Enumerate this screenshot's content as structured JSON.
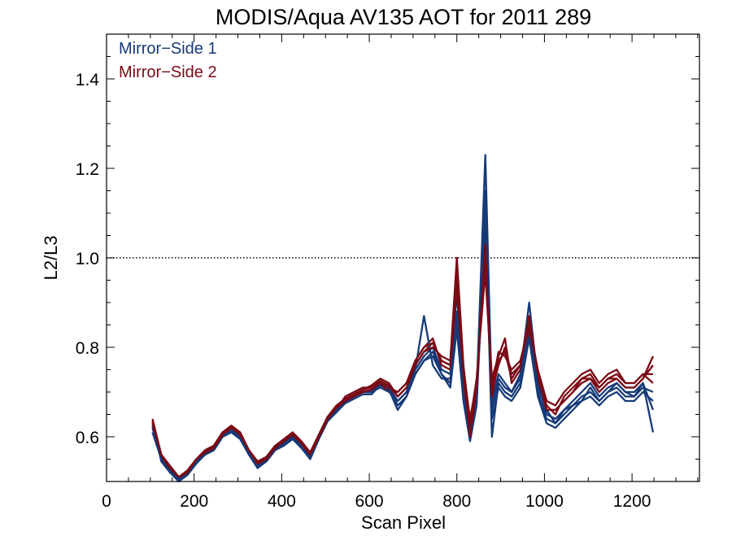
{
  "chart_data": {
    "type": "line",
    "title": "MODIS/Aqua AV135 AOT for 2011 289",
    "xlabel": "Scan Pixel",
    "ylabel": "L2/L3",
    "xlim": [
      0,
      1354
    ],
    "ylim": [
      0.5,
      1.5
    ],
    "xticks": [
      0,
      200,
      400,
      600,
      800,
      1000,
      1200
    ],
    "xtick_labels": [
      "0",
      "200",
      "400",
      "600",
      "800",
      "1000",
      "1200"
    ],
    "yticks": [
      0.6,
      0.8,
      1.0,
      1.2,
      1.4
    ],
    "ytick_labels": [
      "0.6",
      "0.8",
      "1.0",
      "1.2",
      "1.4"
    ],
    "x_minor_step": 50,
    "y_minor_step": 0.05,
    "reference_line": {
      "y": 1.0,
      "style": "dotted"
    },
    "legend": {
      "placement": "top-left"
    },
    "colors": {
      "mirror_side_1": "#163a78",
      "mirror_side_2": "#7a0a14"
    },
    "x": [
      105,
      125,
      145,
      165,
      185,
      205,
      225,
      245,
      265,
      285,
      305,
      325,
      345,
      365,
      385,
      405,
      425,
      445,
      465,
      485,
      505,
      525,
      545,
      565,
      585,
      605,
      625,
      645,
      665,
      685,
      705,
      725,
      745,
      765,
      785,
      800,
      815,
      830,
      845,
      865,
      880,
      895,
      910,
      925,
      945,
      965,
      985,
      1005,
      1025,
      1045,
      1065,
      1085,
      1105,
      1125,
      1145,
      1165,
      1185,
      1205,
      1225,
      1248
    ],
    "series": [
      {
        "name": "Mirror−Side 1",
        "group": 1,
        "values": [
          0.62,
          0.55,
          0.525,
          0.51,
          0.52,
          0.545,
          0.565,
          0.575,
          0.605,
          0.615,
          0.6,
          0.565,
          0.535,
          0.55,
          0.575,
          0.585,
          0.6,
          0.58,
          0.56,
          0.6,
          0.64,
          0.66,
          0.68,
          0.69,
          0.7,
          0.7,
          0.72,
          0.71,
          0.68,
          0.7,
          0.75,
          0.78,
          0.8,
          0.75,
          0.74,
          0.92,
          0.72,
          0.63,
          0.7,
          1.23,
          0.68,
          0.74,
          0.72,
          0.7,
          0.74,
          0.9,
          0.72,
          0.65,
          0.64,
          0.66,
          0.68,
          0.7,
          0.72,
          0.69,
          0.71,
          0.72,
          0.7,
          0.7,
          0.72,
          0.61
        ]
      },
      {
        "name": "Mirror−Side 2",
        "group": 2,
        "values": [
          0.64,
          0.56,
          0.53,
          0.505,
          0.525,
          0.55,
          0.57,
          0.58,
          0.61,
          0.62,
          0.61,
          0.57,
          0.54,
          0.555,
          0.58,
          0.59,
          0.605,
          0.585,
          0.565,
          0.605,
          0.645,
          0.665,
          0.685,
          0.695,
          0.705,
          0.71,
          0.725,
          0.715,
          0.69,
          0.71,
          0.76,
          0.79,
          0.81,
          0.77,
          0.76,
          0.98,
          0.74,
          0.62,
          0.71,
          1.05,
          0.7,
          0.76,
          0.8,
          0.74,
          0.76,
          0.86,
          0.74,
          0.66,
          0.66,
          0.68,
          0.7,
          0.72,
          0.73,
          0.7,
          0.72,
          0.73,
          0.71,
          0.71,
          0.73,
          0.78
        ]
      },
      {
        "name": "",
        "group": 1,
        "values": [
          0.63,
          0.545,
          0.52,
          0.5,
          0.515,
          0.54,
          0.56,
          0.57,
          0.6,
          0.61,
          0.595,
          0.56,
          0.53,
          0.545,
          0.57,
          0.58,
          0.595,
          0.575,
          0.55,
          0.595,
          0.635,
          0.655,
          0.675,
          0.685,
          0.695,
          0.695,
          0.715,
          0.705,
          0.66,
          0.69,
          0.74,
          0.77,
          0.79,
          0.74,
          0.72,
          0.88,
          0.7,
          0.6,
          0.68,
          1.1,
          0.6,
          0.72,
          0.7,
          0.69,
          0.72,
          0.83,
          0.7,
          0.64,
          0.63,
          0.65,
          0.67,
          0.69,
          0.7,
          0.68,
          0.7,
          0.71,
          0.69,
          0.69,
          0.71,
          0.7
        ]
      },
      {
        "name": "",
        "group": 2,
        "values": [
          0.62,
          0.56,
          0.535,
          0.51,
          0.52,
          0.55,
          0.565,
          0.58,
          0.61,
          0.62,
          0.605,
          0.565,
          0.54,
          0.55,
          0.575,
          0.59,
          0.6,
          0.58,
          0.56,
          0.6,
          0.64,
          0.66,
          0.69,
          0.7,
          0.71,
          0.71,
          0.72,
          0.7,
          0.7,
          0.72,
          0.77,
          0.8,
          0.82,
          0.76,
          0.75,
          0.95,
          0.75,
          0.64,
          0.72,
          1.0,
          0.73,
          0.78,
          0.82,
          0.72,
          0.75,
          0.84,
          0.73,
          0.67,
          0.65,
          0.69,
          0.71,
          0.73,
          0.74,
          0.71,
          0.73,
          0.74,
          0.72,
          0.72,
          0.74,
          0.72
        ]
      },
      {
        "name": "",
        "group": 1,
        "values": [
          0.61,
          0.55,
          0.525,
          0.505,
          0.52,
          0.545,
          0.56,
          0.575,
          0.6,
          0.61,
          0.6,
          0.56,
          0.535,
          0.545,
          0.57,
          0.585,
          0.595,
          0.575,
          0.555,
          0.6,
          0.64,
          0.66,
          0.675,
          0.69,
          0.7,
          0.7,
          0.71,
          0.7,
          0.68,
          0.7,
          0.75,
          0.87,
          0.76,
          0.73,
          0.73,
          0.86,
          0.69,
          0.62,
          0.69,
          1.15,
          0.66,
          0.73,
          0.71,
          0.7,
          0.73,
          0.86,
          0.71,
          0.66,
          0.63,
          0.66,
          0.67,
          0.68,
          0.71,
          0.68,
          0.7,
          0.72,
          0.7,
          0.69,
          0.72,
          0.66
        ]
      },
      {
        "name": "",
        "group": 2,
        "values": [
          0.635,
          0.555,
          0.53,
          0.51,
          0.525,
          0.55,
          0.57,
          0.58,
          0.61,
          0.625,
          0.61,
          0.57,
          0.545,
          0.555,
          0.58,
          0.595,
          0.61,
          0.59,
          0.565,
          0.605,
          0.645,
          0.67,
          0.685,
          0.695,
          0.705,
          0.715,
          0.73,
          0.72,
          0.69,
          0.71,
          0.76,
          0.79,
          0.8,
          0.78,
          0.77,
          1.0,
          0.76,
          0.63,
          0.73,
          0.97,
          0.71,
          0.79,
          0.78,
          0.75,
          0.77,
          0.85,
          0.75,
          0.68,
          0.67,
          0.7,
          0.72,
          0.74,
          0.75,
          0.72,
          0.74,
          0.75,
          0.72,
          0.72,
          0.74,
          0.74
        ]
      },
      {
        "name": "",
        "group": 1,
        "values": [
          0.625,
          0.55,
          0.52,
          0.505,
          0.515,
          0.545,
          0.56,
          0.57,
          0.6,
          0.615,
          0.6,
          0.565,
          0.53,
          0.55,
          0.575,
          0.585,
          0.6,
          0.58,
          0.555,
          0.6,
          0.64,
          0.655,
          0.68,
          0.69,
          0.7,
          0.705,
          0.72,
          0.71,
          0.67,
          0.69,
          0.74,
          0.77,
          0.78,
          0.74,
          0.71,
          0.84,
          0.68,
          0.59,
          0.67,
          1.08,
          0.64,
          0.71,
          0.69,
          0.68,
          0.71,
          0.82,
          0.69,
          0.63,
          0.62,
          0.64,
          0.66,
          0.68,
          0.69,
          0.67,
          0.69,
          0.7,
          0.68,
          0.68,
          0.7,
          0.68
        ]
      },
      {
        "name": "",
        "group": 2,
        "values": [
          0.63,
          0.56,
          0.53,
          0.51,
          0.52,
          0.55,
          0.565,
          0.575,
          0.605,
          0.62,
          0.605,
          0.57,
          0.54,
          0.55,
          0.575,
          0.59,
          0.605,
          0.585,
          0.56,
          0.6,
          0.64,
          0.665,
          0.68,
          0.69,
          0.7,
          0.705,
          0.72,
          0.71,
          0.7,
          0.72,
          0.77,
          0.8,
          0.81,
          0.77,
          0.76,
          0.93,
          0.74,
          0.6,
          0.71,
          1.03,
          0.69,
          0.77,
          0.79,
          0.73,
          0.76,
          0.87,
          0.74,
          0.66,
          0.66,
          0.68,
          0.7,
          0.73,
          0.73,
          0.71,
          0.73,
          0.73,
          0.71,
          0.71,
          0.73,
          0.76
        ]
      }
    ]
  }
}
